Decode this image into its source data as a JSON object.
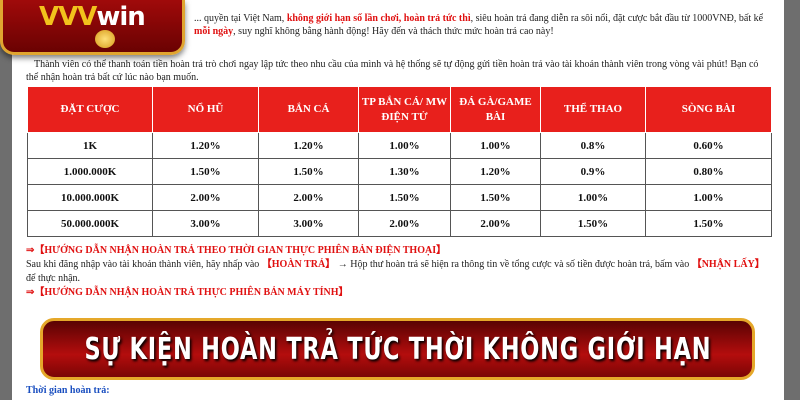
{
  "logo": {
    "brand_main": "VVV",
    "brand_suffix": "win"
  },
  "intro": {
    "line1_prefix": "... quyền tại Việt Nam, ",
    "line1_highlight": "không giới hạn số lần chơi, hoàn trả tức thì",
    "line1_suffix": ", siêu hoàn trả đang diễn ra sôi nổi, đặt cược bắt đầu từ 1000VNĐ, bất kể",
    "line2_highlight": "mỗi ngày",
    "line2_suffix": ", suy nghĩ không bằng hành động!  Hãy đến và thách thức mức hoàn trả cao này!",
    "para2": "Thành viên có thể thanh toán tiền hoàn trả trò chơi ngay lập tức theo nhu cầu của mình và hệ thống sẽ tự động gửi tiền hoàn trả vào tài khoản thành viên trong vòng vài phút! Bạn có thể nhận hoàn trả bất cứ lúc nào bạn muốn."
  },
  "table": {
    "headers": [
      "ĐẶT CƯỢC",
      "NỔ HŨ",
      "BẮN CÁ",
      "TP BẮN CÁ/ MW ĐIỆN TỬ",
      "ĐÁ GÀ/GAME BÀI",
      "THỂ THAO",
      "SÒNG BÀI"
    ],
    "rows": [
      [
        "1K",
        "1.20%",
        "1.20%",
        "1.00%",
        "1.00%",
        "0.8%",
        "0.60%"
      ],
      [
        "1.000.000K",
        "1.50%",
        "1.50%",
        "1.30%",
        "1.20%",
        "0.9%",
        "0.80%"
      ],
      [
        "10.000.000K",
        "2.00%",
        "2.00%",
        "1.50%",
        "1.50%",
        "1.00%",
        "1.00%"
      ],
      [
        "50.000.000K",
        "3.00%",
        "3.00%",
        "2.00%",
        "2.00%",
        "1.50%",
        "1.50%"
      ]
    ]
  },
  "guide_phone": {
    "title": "⇒【HƯỚNG DẪN NHẬN HOÀN TRẢ THEO THỜI GIAN THỰC PHIÊN BẢN ĐIỆN THOẠI】",
    "text1": "Sau khi đăng nhập vào tài khoản thành viên, hãy nhấp vào ",
    "btn1": "【HOÀN TRẢ】",
    "text2": " → Hộp thư hoàn trả sẽ hiện ra thông tin về tổng cược và số tiền được hoàn trả, bấm vào ",
    "btn2": "【NHẬN LẤY】",
    "text3": " để thực nhận."
  },
  "guide_pc": {
    "title": "⇒【HƯỚNG DẪN NHẬN HOÀN TRẢ THỰC PHIÊN BẢN MÁY TÍNH】"
  },
  "time_label": "Thời gian hoàn trả:",
  "banner": {
    "title": "SỰ KIỆN HOÀN TRẢ TỨC THỜI KHÔNG GIỚI HẠN"
  }
}
